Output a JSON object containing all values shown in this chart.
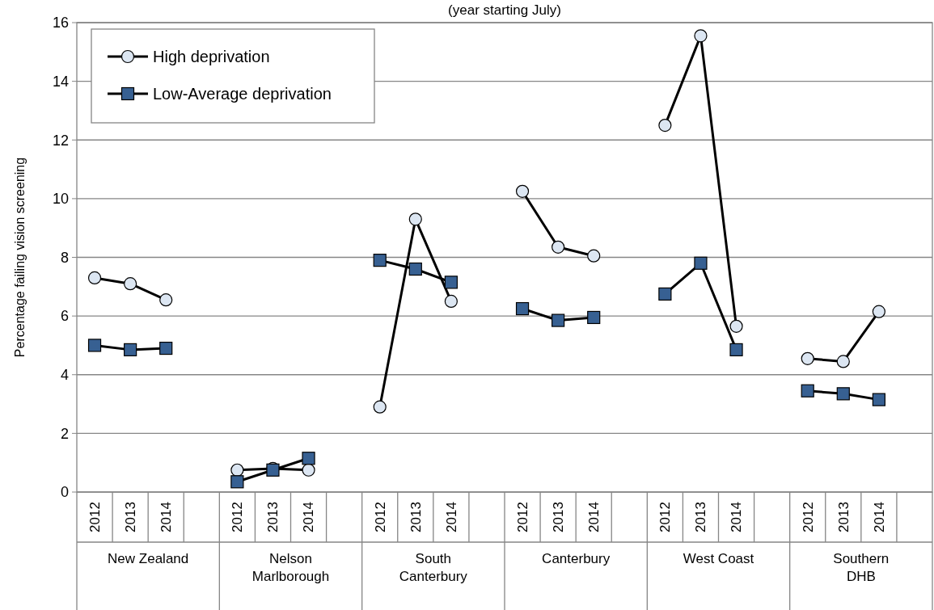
{
  "chart_data": {
    "type": "line",
    "title": "(year starting July)",
    "ylabel": "Percentage failing vision screening",
    "categories": [
      "2012",
      "2013",
      "2014",
      null,
      "2012",
      "2013",
      "2014",
      null,
      "2012",
      "2013",
      "2014",
      null,
      "2012",
      "2013",
      "2014",
      null,
      "2012",
      "2013",
      "2014",
      null,
      "2012",
      "2013",
      "2014",
      null
    ],
    "annotations": [
      "New Zealand",
      "Nelson Marlborough",
      "South Canterbury",
      "Canterbury",
      "West Coast",
      "Southern DHB"
    ],
    "series": [
      {
        "name": "High deprivation",
        "color": "#dce6f2",
        "marker": "circle",
        "values": [
          7.3,
          7.1,
          6.55,
          null,
          0.75,
          0.8,
          0.75,
          null,
          2.9,
          9.3,
          6.5,
          null,
          10.25,
          8.35,
          8.05,
          null,
          12.5,
          15.55,
          5.65,
          null,
          4.55,
          4.45,
          6.15,
          null
        ]
      },
      {
        "name": "Low-Average deprivation",
        "color": "#376092",
        "marker": "square",
        "values": [
          5.0,
          4.85,
          4.9,
          null,
          0.35,
          0.75,
          1.15,
          null,
          7.9,
          7.6,
          7.15,
          null,
          6.25,
          5.85,
          5.95,
          null,
          6.75,
          7.8,
          4.85,
          null,
          3.45,
          3.35,
          3.15,
          null
        ]
      }
    ],
    "ylim": [
      0,
      16
    ],
    "yticks": [
      0,
      2,
      4,
      6,
      8,
      10,
      12,
      14,
      16
    ],
    "grid": "y",
    "legend": "top left",
    "line_style": "solid"
  }
}
